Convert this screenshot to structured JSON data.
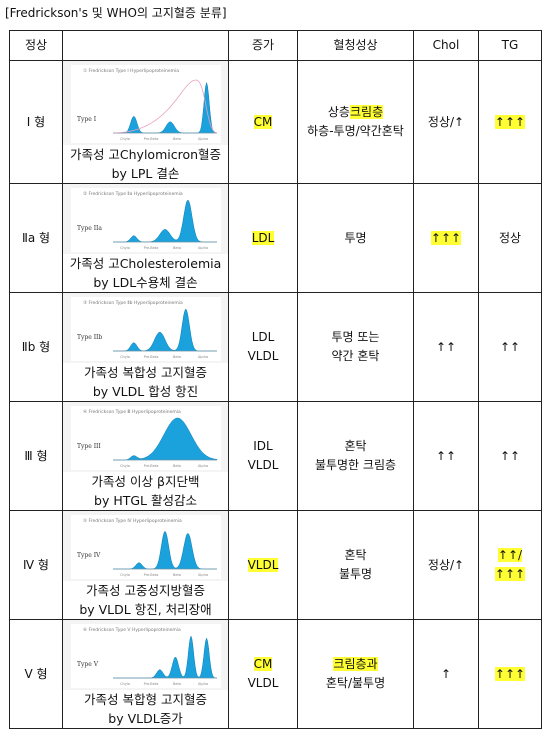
{
  "title": "[Fredrickson's 및 WHO의 고지혈증 분류]",
  "header": [
    "정상",
    "",
    "증가",
    "혈청성상",
    "Chol",
    "TG"
  ],
  "axis_labels": [
    "Chylo",
    "Pre-Beta",
    "Beta",
    "Alpha"
  ],
  "rows": [
    {
      "type": "Ⅰ 형",
      "image_title": "① Fredrickson Type Ⅰ Hyperlipoproteinemia",
      "image_label": "Type I",
      "caption": [
        "가족성 고Chylomicron혈증",
        "by LPL 결손"
      ],
      "increase": [
        [
          {
            "text": "CM",
            "highlight": true
          }
        ]
      ],
      "serum": [
        [
          {
            "text": "상층"
          },
          {
            "text": "크림층",
            "highlight": true
          }
        ],
        [
          {
            "text": "하층-투명/약간혼탁"
          }
        ]
      ],
      "chol": [
        [
          {
            "text": "정상/↑"
          }
        ]
      ],
      "tg": [
        [
          {
            "text": "↑↑↑",
            "highlight": true
          }
        ]
      ]
    },
    {
      "type": "Ⅱa 형",
      "image_title": "② Fredrickson Type Ⅱa Hyperlipoproteinemia",
      "image_label": "Type IIa",
      "caption": [
        "가족성 고Cholesterolemia",
        "by LDL수용체 결손"
      ],
      "increase": [
        [
          {
            "text": "LDL",
            "highlight": true
          }
        ]
      ],
      "serum": [
        [
          {
            "text": "투명"
          }
        ]
      ],
      "chol": [
        [
          {
            "text": "↑↑↑",
            "highlight": true
          }
        ]
      ],
      "tg": [
        [
          {
            "text": "정상"
          }
        ]
      ]
    },
    {
      "type": "Ⅱb 형",
      "image_title": "③ Fredrickson Type Ⅱb Hyperlipoproteinemia",
      "image_label": "Type IIb",
      "caption": [
        "가족성 복합성 고지혈증",
        "by VLDL 합성 항진"
      ],
      "increase": [
        [
          {
            "text": "LDL"
          }
        ],
        [
          {
            "text": "VLDL"
          }
        ]
      ],
      "serum": [
        [
          {
            "text": "투명 또는"
          }
        ],
        [
          {
            "text": "약간 혼탁"
          }
        ]
      ],
      "chol": [
        [
          {
            "text": "↑↑"
          }
        ]
      ],
      "tg": [
        [
          {
            "text": "↑↑"
          }
        ]
      ]
    },
    {
      "type": "Ⅲ 형",
      "image_title": "④ Fredrickson Type Ⅲ Hyperlipoproteinemia",
      "image_label": "Type III",
      "caption": [
        "가족성 이상 β지단백",
        "by HTGL 활성감소"
      ],
      "increase": [
        [
          {
            "text": "IDL"
          }
        ],
        [
          {
            "text": "VLDL"
          }
        ]
      ],
      "serum": [
        [
          {
            "text": "혼탁"
          }
        ],
        [
          {
            "text": "불투명한 크림층"
          }
        ]
      ],
      "chol": [
        [
          {
            "text": "↑↑"
          }
        ]
      ],
      "tg": [
        [
          {
            "text": "↑↑"
          }
        ]
      ]
    },
    {
      "type": "Ⅳ 형",
      "image_title": "⑤ Fredrickson Type Ⅳ Hyperlipoproteinemia",
      "image_label": "Type IV",
      "caption": [
        "가족성 고중성지방혈증",
        "by VLDL 항진, 처리장애"
      ],
      "increase": [
        [
          {
            "text": "VLDL",
            "highlight": true
          }
        ]
      ],
      "serum": [
        [
          {
            "text": "혼탁"
          }
        ],
        [
          {
            "text": "불투명"
          }
        ]
      ],
      "chol": [
        [
          {
            "text": "정상/↑"
          }
        ]
      ],
      "tg": [
        [
          {
            "text": "↑↑/",
            "highlight": true
          }
        ],
        [
          {
            "text": "↑↑↑",
            "highlight": true
          }
        ]
      ]
    },
    {
      "type": "Ⅴ 형",
      "image_title": "⑥ Fredrickson Type Ⅴ Hyperlipoproteinemia",
      "image_label": "Type V",
      "caption": [
        "가족성 복합형 고지혈증",
        "by VLDL증가"
      ],
      "increase": [
        [
          {
            "text": "CM",
            "highlight": true
          }
        ],
        [
          {
            "text": "VLDL"
          }
        ]
      ],
      "serum": [
        [
          {
            "text": "크림층과",
            "highlight": true
          }
        ],
        [
          {
            "text": "혼탁/불투명"
          }
        ]
      ],
      "chol": [
        [
          {
            "text": "↑"
          }
        ]
      ],
      "tg": [
        [
          {
            "text": "↑↑↑",
            "highlight": true
          }
        ]
      ]
    }
  ]
}
